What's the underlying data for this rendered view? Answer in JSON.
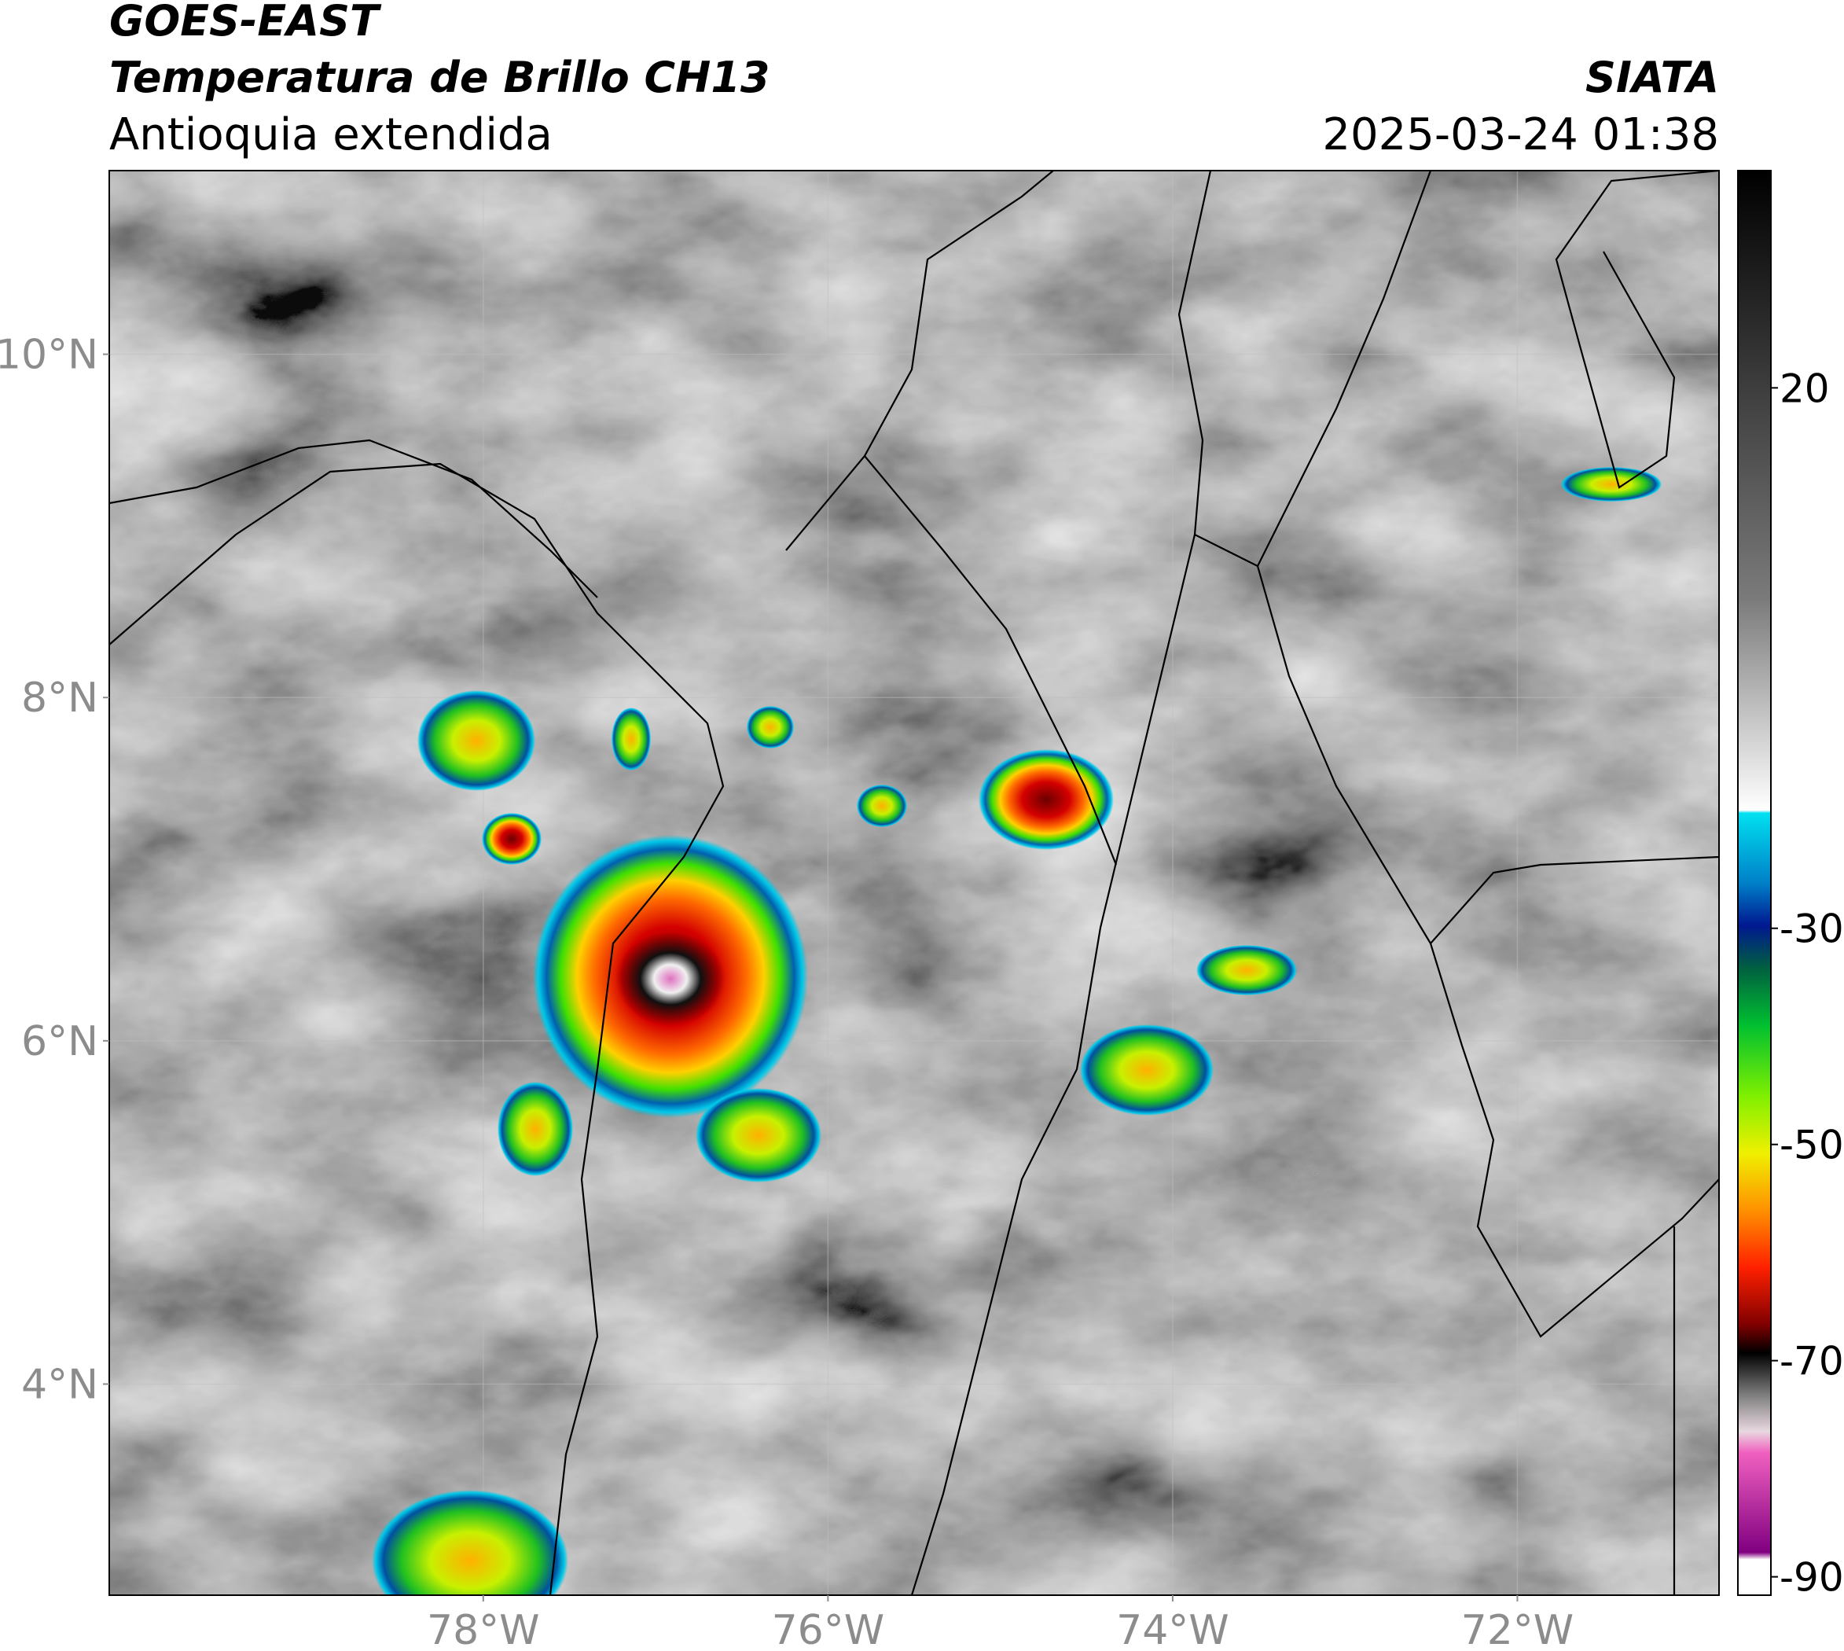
{
  "header": {
    "satellite": "GOES-EAST",
    "product": "Temperatura de Brillo CH13",
    "region": "Antioquia extendida",
    "source": "SIATA",
    "timestamp": "2025-03-24 01:38"
  },
  "map": {
    "lon_range": [
      -80.17,
      -70.83
    ],
    "lat_range": [
      2.77,
      11.07
    ],
    "lon_ticks": [
      {
        "value": -78,
        "label": "78°W"
      },
      {
        "value": -76,
        "label": "76°W"
      },
      {
        "value": -74,
        "label": "74°W"
      },
      {
        "value": -72,
        "label": "72°W"
      }
    ],
    "lat_ticks": [
      {
        "value": 10,
        "label": "10°N"
      },
      {
        "value": 8,
        "label": "8°N"
      },
      {
        "value": 6,
        "label": "6°N"
      },
      {
        "value": 4,
        "label": "4°N"
      }
    ]
  },
  "colorbar": {
    "range": [
      -91.7,
      40.1
    ],
    "ticks": [
      20,
      -30,
      -50,
      -70,
      -90
    ]
  }
}
